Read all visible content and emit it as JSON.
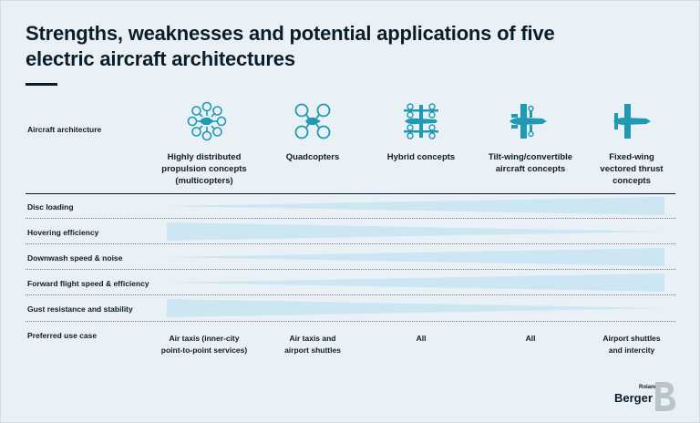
{
  "title_lines": [
    "Strengths, weaknesses and potential applications of five",
    "electric aircraft architectures"
  ],
  "header_label": "Aircraft architecture",
  "columns": [
    {
      "icon": "multicopter-icon",
      "name_lines": [
        "Highly distributed",
        "propulsion concepts",
        "(multicopters)"
      ],
      "use_lines": [
        "Air taxis (inner-city",
        "point-to-point services)"
      ]
    },
    {
      "icon": "quadcopter-icon",
      "name_lines": [
        "Quadcopters"
      ],
      "use_lines": [
        "Air taxis and",
        "airport shuttles"
      ]
    },
    {
      "icon": "hybrid-concept-icon",
      "name_lines": [
        "Hybrid concepts"
      ],
      "use_lines": [
        "All"
      ]
    },
    {
      "icon": "tilt-wing-icon",
      "name_lines": [
        "Tilt-wing/convertible",
        "aircraft concepts"
      ],
      "use_lines": [
        "All"
      ]
    },
    {
      "icon": "fixed-wing-icon",
      "name_lines": [
        "Fixed-wing",
        "vectored thrust",
        "concepts"
      ],
      "use_lines": [
        "Airport shuttles",
        "and intercity"
      ]
    }
  ],
  "criteria": [
    {
      "label": "Disc loading",
      "increases_to": "right"
    },
    {
      "label": "Hovering efficiency",
      "increases_to": "left"
    },
    {
      "label": "Downwash speed & noise",
      "increases_to": "right"
    },
    {
      "label": "Forward flight speed & efficiency",
      "increases_to": "right"
    },
    {
      "label": "Gust resistance and stability",
      "increases_to": "left"
    }
  ],
  "use_case_label": "Preferred use case",
  "brand": {
    "top": "Roland",
    "name": "Berger"
  },
  "colors": {
    "background": "#e9f1f6",
    "wedge": "#cce7f3",
    "ink": "#0b1d2a",
    "icon": "#1f9ab2"
  }
}
